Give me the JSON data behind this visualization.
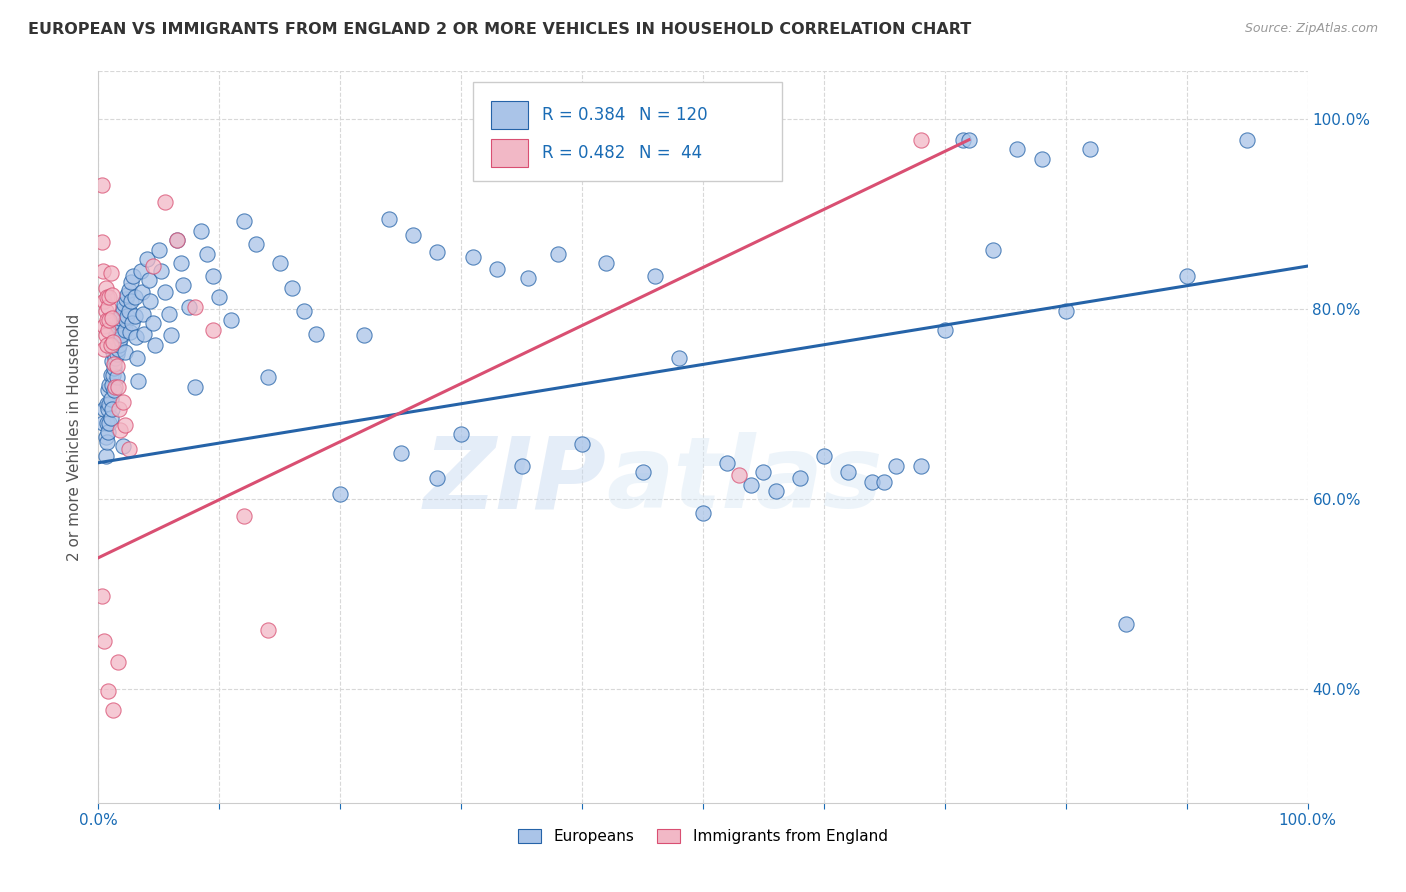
{
  "title": "EUROPEAN VS IMMIGRANTS FROM ENGLAND 2 OR MORE VEHICLES IN HOUSEHOLD CORRELATION CHART",
  "source": "Source: ZipAtlas.com",
  "ylabel": "2 or more Vehicles in Household",
  "legend_blue_r": "R = 0.384",
  "legend_blue_n": "N = 120",
  "legend_pink_r": "R = 0.482",
  "legend_pink_n": "N =  44",
  "blue_color": "#aac4e8",
  "pink_color": "#f2b8c6",
  "blue_line_color": "#2563a8",
  "pink_line_color": "#d94f72",
  "legend_text_color": "#1a6cb5",
  "blue_scatter": [
    [
      0.004,
      0.68
    ],
    [
      0.005,
      0.695
    ],
    [
      0.006,
      0.665
    ],
    [
      0.006,
      0.645
    ],
    [
      0.007,
      0.7
    ],
    [
      0.007,
      0.68
    ],
    [
      0.007,
      0.66
    ],
    [
      0.008,
      0.715
    ],
    [
      0.008,
      0.695
    ],
    [
      0.008,
      0.67
    ],
    [
      0.009,
      0.72
    ],
    [
      0.009,
      0.7
    ],
    [
      0.009,
      0.68
    ],
    [
      0.01,
      0.73
    ],
    [
      0.01,
      0.705
    ],
    [
      0.01,
      0.685
    ],
    [
      0.011,
      0.745
    ],
    [
      0.011,
      0.72
    ],
    [
      0.011,
      0.695
    ],
    [
      0.012,
      0.755
    ],
    [
      0.012,
      0.73
    ],
    [
      0.013,
      0.76
    ],
    [
      0.013,
      0.738
    ],
    [
      0.013,
      0.715
    ],
    [
      0.014,
      0.77
    ],
    [
      0.014,
      0.748
    ],
    [
      0.015,
      0.775
    ],
    [
      0.015,
      0.752
    ],
    [
      0.015,
      0.728
    ],
    [
      0.016,
      0.78
    ],
    [
      0.016,
      0.758
    ],
    [
      0.017,
      0.785
    ],
    [
      0.017,
      0.762
    ],
    [
      0.018,
      0.79
    ],
    [
      0.018,
      0.768
    ],
    [
      0.019,
      0.795
    ],
    [
      0.019,
      0.772
    ],
    [
      0.02,
      0.8
    ],
    [
      0.02,
      0.656
    ],
    [
      0.021,
      0.805
    ],
    [
      0.022,
      0.778
    ],
    [
      0.022,
      0.755
    ],
    [
      0.023,
      0.81
    ],
    [
      0.023,
      0.788
    ],
    [
      0.024,
      0.815
    ],
    [
      0.024,
      0.792
    ],
    [
      0.025,
      0.82
    ],
    [
      0.025,
      0.798
    ],
    [
      0.026,
      0.776
    ],
    [
      0.027,
      0.828
    ],
    [
      0.027,
      0.808
    ],
    [
      0.028,
      0.785
    ],
    [
      0.029,
      0.835
    ],
    [
      0.03,
      0.812
    ],
    [
      0.03,
      0.792
    ],
    [
      0.031,
      0.77
    ],
    [
      0.032,
      0.748
    ],
    [
      0.033,
      0.724
    ],
    [
      0.035,
      0.84
    ],
    [
      0.036,
      0.818
    ],
    [
      0.037,
      0.795
    ],
    [
      0.038,
      0.773
    ],
    [
      0.04,
      0.852
    ],
    [
      0.042,
      0.83
    ],
    [
      0.043,
      0.808
    ],
    [
      0.045,
      0.785
    ],
    [
      0.047,
      0.762
    ],
    [
      0.05,
      0.862
    ],
    [
      0.052,
      0.84
    ],
    [
      0.055,
      0.818
    ],
    [
      0.058,
      0.795
    ],
    [
      0.06,
      0.772
    ],
    [
      0.065,
      0.872
    ],
    [
      0.068,
      0.848
    ],
    [
      0.07,
      0.825
    ],
    [
      0.075,
      0.802
    ],
    [
      0.08,
      0.718
    ],
    [
      0.085,
      0.882
    ],
    [
      0.09,
      0.858
    ],
    [
      0.095,
      0.835
    ],
    [
      0.1,
      0.812
    ],
    [
      0.11,
      0.788
    ],
    [
      0.12,
      0.892
    ],
    [
      0.13,
      0.868
    ],
    [
      0.14,
      0.728
    ],
    [
      0.15,
      0.848
    ],
    [
      0.16,
      0.822
    ],
    [
      0.17,
      0.798
    ],
    [
      0.18,
      0.774
    ],
    [
      0.2,
      0.605
    ],
    [
      0.22,
      0.772
    ],
    [
      0.25,
      0.648
    ],
    [
      0.28,
      0.622
    ],
    [
      0.3,
      0.668
    ],
    [
      0.35,
      0.635
    ],
    [
      0.4,
      0.658
    ],
    [
      0.45,
      0.628
    ],
    [
      0.48,
      0.748
    ],
    [
      0.5,
      0.585
    ],
    [
      0.52,
      0.638
    ],
    [
      0.54,
      0.615
    ],
    [
      0.55,
      0.628
    ],
    [
      0.56,
      0.608
    ],
    [
      0.58,
      0.622
    ],
    [
      0.6,
      0.645
    ],
    [
      0.62,
      0.628
    ],
    [
      0.64,
      0.618
    ],
    [
      0.65,
      0.618
    ],
    [
      0.66,
      0.635
    ],
    [
      0.68,
      0.635
    ],
    [
      0.7,
      0.778
    ],
    [
      0.715,
      0.978
    ],
    [
      0.72,
      0.978
    ],
    [
      0.74,
      0.862
    ],
    [
      0.76,
      0.968
    ],
    [
      0.78,
      0.958
    ],
    [
      0.8,
      0.798
    ],
    [
      0.82,
      0.968
    ],
    [
      0.85,
      0.468
    ],
    [
      0.9,
      0.835
    ],
    [
      0.95,
      0.978
    ],
    [
      0.38,
      0.858
    ],
    [
      0.42,
      0.848
    ],
    [
      0.46,
      0.835
    ],
    [
      0.31,
      0.855
    ],
    [
      0.33,
      0.842
    ],
    [
      0.355,
      0.832
    ],
    [
      0.28,
      0.86
    ],
    [
      0.26,
      0.878
    ],
    [
      0.24,
      0.895
    ]
  ],
  "pink_scatter": [
    [
      0.003,
      0.93
    ],
    [
      0.003,
      0.87
    ],
    [
      0.004,
      0.84
    ],
    [
      0.005,
      0.808
    ],
    [
      0.005,
      0.782
    ],
    [
      0.005,
      0.758
    ],
    [
      0.006,
      0.822
    ],
    [
      0.006,
      0.798
    ],
    [
      0.006,
      0.772
    ],
    [
      0.007,
      0.812
    ],
    [
      0.007,
      0.788
    ],
    [
      0.007,
      0.762
    ],
    [
      0.008,
      0.802
    ],
    [
      0.008,
      0.778
    ],
    [
      0.009,
      0.812
    ],
    [
      0.009,
      0.788
    ],
    [
      0.01,
      0.762
    ],
    [
      0.01,
      0.838
    ],
    [
      0.011,
      0.815
    ],
    [
      0.011,
      0.79
    ],
    [
      0.012,
      0.765
    ],
    [
      0.013,
      0.742
    ],
    [
      0.014,
      0.718
    ],
    [
      0.015,
      0.74
    ],
    [
      0.016,
      0.718
    ],
    [
      0.017,
      0.695
    ],
    [
      0.018,
      0.672
    ],
    [
      0.02,
      0.702
    ],
    [
      0.022,
      0.678
    ],
    [
      0.025,
      0.652
    ],
    [
      0.003,
      0.498
    ],
    [
      0.005,
      0.45
    ],
    [
      0.008,
      0.398
    ],
    [
      0.012,
      0.378
    ],
    [
      0.016,
      0.428
    ],
    [
      0.045,
      0.845
    ],
    [
      0.055,
      0.912
    ],
    [
      0.065,
      0.872
    ],
    [
      0.08,
      0.802
    ],
    [
      0.095,
      0.778
    ],
    [
      0.12,
      0.582
    ],
    [
      0.14,
      0.462
    ],
    [
      0.53,
      0.625
    ],
    [
      0.68,
      0.978
    ]
  ],
  "blue_trend_x": [
    0.0,
    1.0
  ],
  "blue_trend_y": [
    0.638,
    0.845
  ],
  "pink_trend_x": [
    0.0,
    0.72
  ],
  "pink_trend_y": [
    0.538,
    0.978
  ],
  "watermark_zip": "ZIP",
  "watermark_atlas": "atlas",
  "bg_color": "#ffffff",
  "grid_color": "#d8d8d8",
  "xlim": [
    0,
    1
  ],
  "ylim": [
    0.28,
    1.05
  ],
  "yticks": [
    0.4,
    0.6,
    0.8,
    1.0
  ],
  "ytick_labels": [
    "40.0%",
    "60.0%",
    "80.0%",
    "100.0%"
  ],
  "xtick_positions": [
    0.0,
    0.1,
    0.2,
    0.3,
    0.4,
    0.5,
    0.6,
    0.7,
    0.8,
    0.9,
    1.0
  ],
  "xtick_labels_show": [
    "0.0%",
    "",
    "",
    "",
    "",
    "",
    "",
    "",
    "",
    "",
    "100.0%"
  ]
}
